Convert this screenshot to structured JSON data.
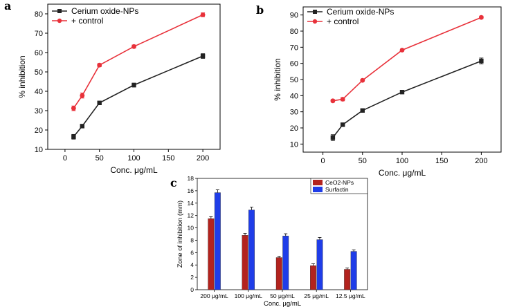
{
  "chart_data": [
    {
      "panel": "a",
      "type": "line",
      "xlabel": "Conc. μg/mL",
      "ylabel": "% inhibition",
      "xlim": [
        -25,
        225
      ],
      "ylim": [
        10,
        85
      ],
      "xticks": [
        0,
        50,
        100,
        150,
        200
      ],
      "yticks": [
        10,
        20,
        30,
        40,
        50,
        60,
        70,
        80
      ],
      "series": [
        {
          "name": "Cerium oxide-NPs",
          "color": "#222222",
          "marker": "square",
          "x": [
            12.5,
            25,
            50,
            100,
            200
          ],
          "y": [
            16.5,
            22,
            34,
            43.2,
            58.2
          ],
          "err": [
            1.2,
            0.8,
            0.6,
            1.0,
            1.2
          ]
        },
        {
          "name": "+ control",
          "color": "#e8313a",
          "marker": "circle",
          "x": [
            12.5,
            25,
            50,
            100,
            200
          ],
          "y": [
            31.2,
            37.8,
            53.5,
            63.1,
            79.5
          ],
          "err": [
            1.2,
            1.3,
            0.8,
            0.8,
            1.0
          ]
        }
      ]
    },
    {
      "panel": "b",
      "type": "line",
      "xlabel": "Conc. μg/mL",
      "ylabel": "% inhibition",
      "xlim": [
        -25,
        225
      ],
      "ylim": [
        5,
        95
      ],
      "xticks": [
        0,
        50,
        100,
        150,
        200
      ],
      "yticks": [
        10,
        20,
        30,
        40,
        50,
        60,
        70,
        80,
        90
      ],
      "series": [
        {
          "name": "Cerium oxide-NPs",
          "color": "#222222",
          "marker": "square",
          "x": [
            12.5,
            25,
            50,
            100,
            200
          ],
          "y": [
            14,
            22,
            30.8,
            42.2,
            61.5
          ],
          "err": [
            1.8,
            0.8,
            0.6,
            0.6,
            1.8
          ]
        },
        {
          "name": "+ control",
          "color": "#e8313a",
          "marker": "circle",
          "x": [
            12.5,
            25,
            50,
            100,
            200
          ],
          "y": [
            36.8,
            37.8,
            49.5,
            68.2,
            88.5
          ],
          "err": [
            0.8,
            1.0,
            0.6,
            0.6,
            0.8
          ]
        }
      ]
    },
    {
      "panel": "c",
      "type": "bar",
      "xlabel": "Conc. μg/mL",
      "ylabel": "Zone of inhibition (mm)",
      "ylim": [
        0,
        18
      ],
      "yticks": [
        0,
        2,
        4,
        6,
        8,
        10,
        12,
        14,
        16,
        18
      ],
      "categories": [
        "200 μg/mL",
        "100 μg/mL",
        "50 μg/mL",
        "25 μg/mL",
        "12.5 μg/mL"
      ],
      "series": [
        {
          "name": "CeO2-NPs",
          "color": "#b3231e",
          "values": [
            11.5,
            8.8,
            5.2,
            3.9,
            3.3
          ],
          "err": [
            0.3,
            0.3,
            0.2,
            0.3,
            0.2
          ]
        },
        {
          "name": "Surfactin",
          "color": "#1f3de8",
          "values": [
            15.7,
            12.9,
            8.7,
            8.1,
            6.2
          ],
          "err": [
            0.45,
            0.45,
            0.35,
            0.35,
            0.25
          ]
        }
      ]
    }
  ]
}
